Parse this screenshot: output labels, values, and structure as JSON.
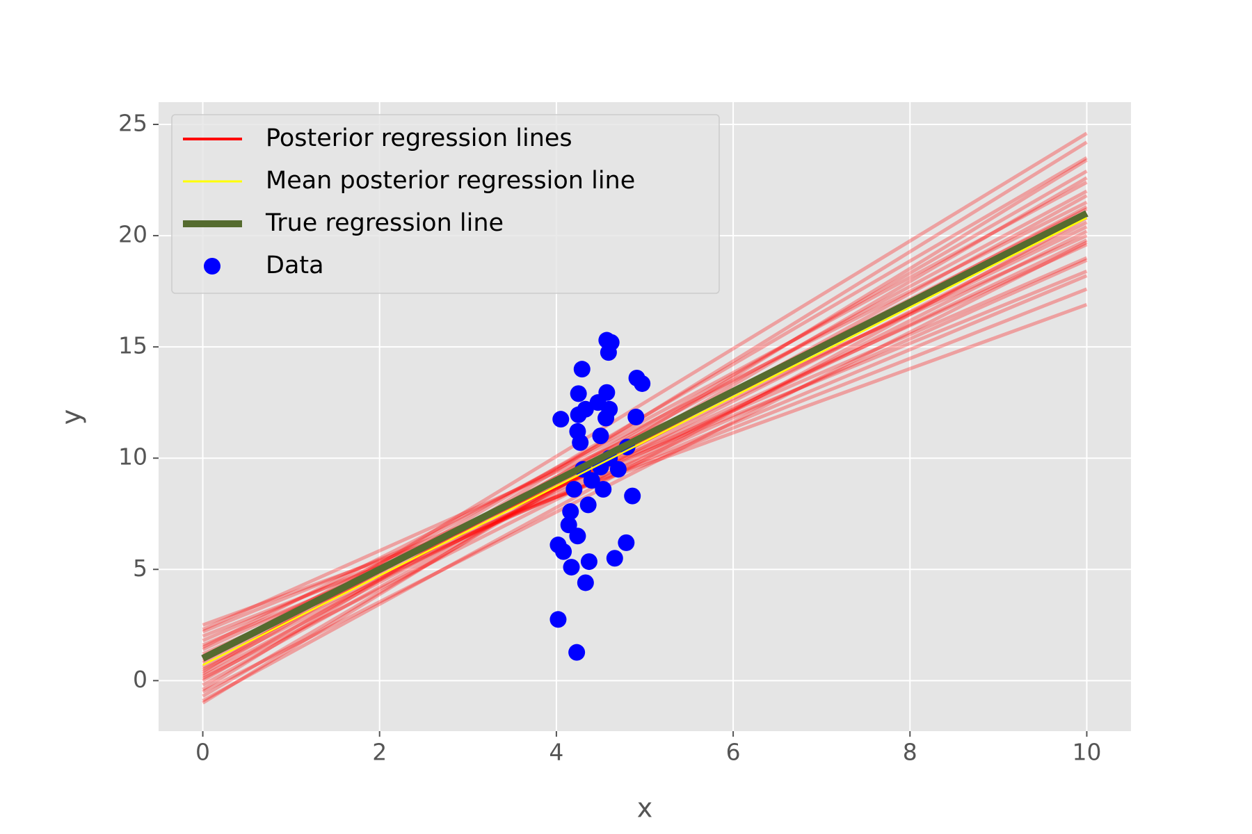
{
  "chart_data": {
    "type": "line",
    "xlabel": "x",
    "ylabel": "y",
    "x": [
      0,
      10
    ],
    "xlim": [
      -0.5,
      10.5
    ],
    "ylim": [
      -2.27,
      26.0
    ],
    "xticks": [
      0,
      2,
      4,
      6,
      8,
      10
    ],
    "yticks": [
      0,
      5,
      10,
      15,
      20,
      25
    ],
    "grid": true,
    "legend": "upper left",
    "posterior": {
      "name": "Posterior regression lines",
      "color": "#ff0000",
      "lines": [
        [
          -1.0,
          23.4
        ],
        [
          -0.7,
          22.6
        ],
        [
          -0.4,
          24.2
        ],
        [
          -0.2,
          21.8
        ],
        [
          0.0,
          22.9
        ],
        [
          0.2,
          21.3
        ],
        [
          0.3,
          23.5
        ],
        [
          0.5,
          20.6
        ],
        [
          0.6,
          22.0
        ],
        [
          0.8,
          19.8
        ],
        [
          0.9,
          21.2
        ],
        [
          1.1,
          20.4
        ],
        [
          1.2,
          18.9
        ],
        [
          1.4,
          19.6
        ],
        [
          1.6,
          18.2
        ],
        [
          1.8,
          19.0
        ],
        [
          2.0,
          17.6
        ],
        [
          2.2,
          18.4
        ],
        [
          2.5,
          16.9
        ],
        [
          0.4,
          24.6
        ],
        [
          -0.9,
          20.8
        ],
        [
          1.5,
          21.5
        ],
        [
          0.1,
          20.2
        ],
        [
          1.0,
          22.4
        ],
        [
          -0.5,
          19.7
        ],
        [
          2.3,
          20.0
        ]
      ]
    },
    "series": [
      {
        "name": "Mean posterior regression line",
        "color": "#ffff00",
        "values": [
          0.7,
          20.8
        ]
      },
      {
        "name": "True regression line",
        "color": "#556b2f",
        "values": [
          1.0,
          21.0
        ]
      }
    ],
    "scatter": {
      "name": "Data",
      "color": "#0000ff",
      "x": [
        4.02,
        4.23,
        4.02,
        4.08,
        4.17,
        4.24,
        4.33,
        4.37,
        4.66,
        4.79,
        4.14,
        4.16,
        4.36,
        4.53,
        4.86,
        4.05,
        4.24,
        4.27,
        4.25,
        4.33,
        4.25,
        4.29,
        4.47,
        4.57,
        4.6,
        4.56,
        4.57,
        4.62,
        4.59,
        4.91,
        4.97,
        4.9,
        4.5,
        4.3,
        4.4,
        4.6,
        4.7,
        4.2,
        4.5,
        4.8
      ],
      "y": [
        2.75,
        1.27,
        6.1,
        5.8,
        5.1,
        6.5,
        4.4,
        5.35,
        5.5,
        6.2,
        7.0,
        7.6,
        7.9,
        8.6,
        8.3,
        11.75,
        11.2,
        10.7,
        11.95,
        12.2,
        12.9,
        14.0,
        12.5,
        12.95,
        12.2,
        11.8,
        15.3,
        15.2,
        14.75,
        13.6,
        13.35,
        11.85,
        11.0,
        9.5,
        9.0,
        10.0,
        9.5,
        8.6,
        9.6,
        10.5
      ]
    }
  }
}
